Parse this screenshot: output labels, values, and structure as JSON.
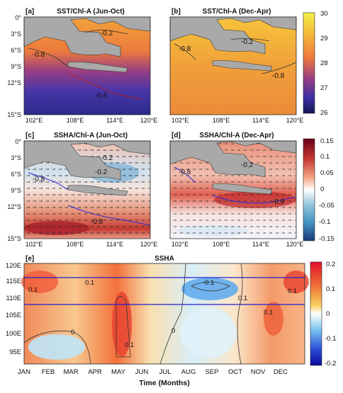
{
  "panels": [
    {
      "tag": "[a]",
      "title": "SST/Chl-A (Jun-Oct)",
      "contours": [
        "-0.2",
        "-0.8",
        "-0.8"
      ]
    },
    {
      "tag": "[b]",
      "title": "SST/Chl-A (Dec-Apr)",
      "contours": [
        "-0.2",
        "-0.8",
        "-0.8"
      ]
    },
    {
      "tag": "[c]",
      "title": "SSHA/Chl-A (Jun-Oct)",
      "contours": [
        "-0.2",
        "-0.8",
        "-0.2",
        "-0.8"
      ]
    },
    {
      "tag": "[d]",
      "title": "SSHA/Chl-A (Dec-Apr)",
      "contours": [
        "-0.2",
        "-0.8",
        "-0.8"
      ]
    }
  ],
  "map_axes": {
    "lat_ticks": [
      "0°",
      "3°S",
      "6°S",
      "9°S",
      "12°S",
      "15°S"
    ],
    "lon_ticks": [
      "102°E",
      "108°E",
      "114°E",
      "120°E"
    ]
  },
  "colorbars": {
    "sst": {
      "ticks": [
        "30",
        "29",
        "28",
        "27",
        "26"
      ],
      "colors": [
        "#f5f542",
        "#f2b33a",
        "#e8603a",
        "#9a3a7a",
        "#3a2fa0",
        "#1a1a5e"
      ]
    },
    "ssha": {
      "ticks": [
        "0.15",
        "0.1",
        "0.05",
        "0",
        "-0.05",
        "-0.1",
        "-0.15"
      ],
      "colors": [
        "#7a0a1c",
        "#d6604d",
        "#f4a582",
        "#ffffff",
        "#92c5de",
        "#4393c3",
        "#1f4e8c"
      ]
    },
    "hov": {
      "ticks": [
        "0.2",
        "0.1",
        "0",
        "-0.1",
        "-0.2"
      ],
      "colors": [
        "#e0102a",
        "#f07a3a",
        "#f9d060",
        "#ffffff",
        "#7ec8f0",
        "#2a4ad8",
        "#1010b0"
      ]
    }
  },
  "hovmoller": {
    "tag": "[e]",
    "title": "SSHA",
    "y_ticks": [
      "120E",
      "115E",
      "110E",
      "105E",
      "100E",
      "95E"
    ],
    "x_ticks": [
      "JAN",
      "FEB",
      "MAR",
      "APR",
      "MAY",
      "JUN",
      "JUL",
      "AUG",
      "SEP",
      "OCT",
      "NOV",
      "DEC"
    ],
    "x_label": "Time (Months)",
    "contours": [
      "0.1",
      "0.1",
      "-0.1",
      "0.1",
      "0",
      "0.1",
      "0.1",
      "0.1",
      "0"
    ]
  }
}
